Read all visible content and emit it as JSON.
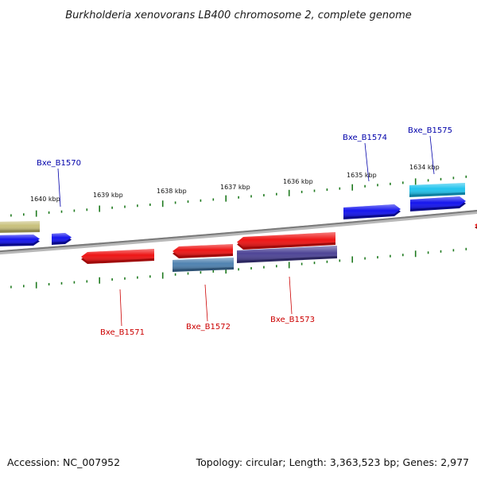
{
  "title": "Burkholderia xenovorans LB400 chromosome 2, complete genome",
  "footer": {
    "accession": "Accession: NC_007952",
    "summary": "Topology: circular; Length: 3,363,523 bp; Genes: 2,977"
  },
  "colors": {
    "backbone": "#8a8a8a",
    "tick": "#1f7a1f",
    "forward_label": "#0000aa",
    "reverse_label": "#cc0000"
  },
  "ticks": [
    {
      "label": "1640 kbp"
    },
    {
      "label": "1639 kbp"
    },
    {
      "label": "1638 kbp"
    },
    {
      "label": "1637 kbp"
    },
    {
      "label": "1636 kbp"
    },
    {
      "label": "1635 kbp"
    },
    {
      "label": "1634 kbp"
    }
  ],
  "gene_labels": [
    {
      "name": "Bxe_B1570",
      "strand": "forward"
    },
    {
      "name": "Bxe_B1574",
      "strand": "forward"
    },
    {
      "name": "Bxe_B1575",
      "strand": "forward"
    },
    {
      "name": "Bxe_B1571",
      "strand": "reverse"
    },
    {
      "name": "Bxe_B1572",
      "strand": "reverse"
    },
    {
      "name": "Bxe_B1573",
      "strand": "reverse"
    }
  ],
  "features": [
    {
      "id": "khaki-feature",
      "color": "#c8c07c",
      "dark": "#8f884e"
    },
    {
      "id": "blue-left",
      "color": "#1515ee",
      "dark": "#0a0a8a"
    },
    {
      "id": "blue-small",
      "color": "#1515ee",
      "dark": "#0a0a8a"
    },
    {
      "id": "blue-1574",
      "color": "#1515ee",
      "dark": "#0a0a8a"
    },
    {
      "id": "cyan-1575",
      "color": "#22c4ee",
      "dark": "#0e7fa0"
    },
    {
      "id": "blue-1575",
      "color": "#1515ee",
      "dark": "#0a0a8a"
    },
    {
      "id": "red-1571",
      "color": "#ee1515",
      "dark": "#a00a0a"
    },
    {
      "id": "red-1572",
      "color": "#ee1515",
      "dark": "#a00a0a"
    },
    {
      "id": "steel-1572",
      "color": "#4f82b0",
      "dark": "#2e5274"
    },
    {
      "id": "red-1573",
      "color": "#ee1515",
      "dark": "#a00a0a"
    },
    {
      "id": "purple-1573",
      "color": "#4e4596",
      "dark": "#2c2760"
    },
    {
      "id": "red-right-edge",
      "color": "#ee1515",
      "dark": "#a00a0a"
    }
  ]
}
